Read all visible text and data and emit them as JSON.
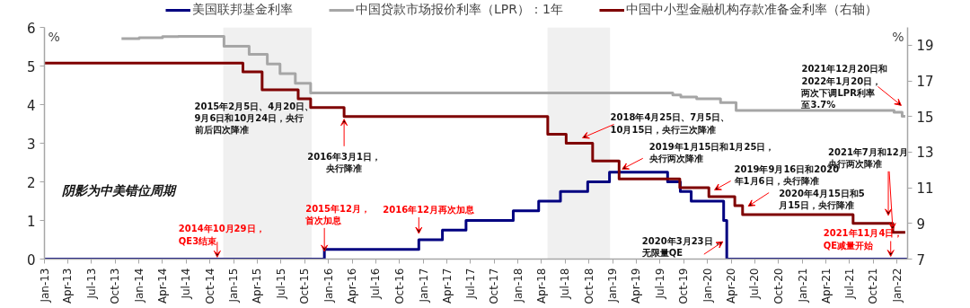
{
  "chart_data": {
    "type": "step",
    "ylabel": "%",
    "y2label": "%",
    "xlim": [
      "2013-01-01",
      "2022-02-10"
    ],
    "xticks": [
      {
        "value": "2013-01",
        "label": "Jan-13"
      },
      {
        "value": "2013-04",
        "label": "Apr-13"
      },
      {
        "value": "2013-07",
        "label": "Jul-13"
      },
      {
        "value": "2013-10",
        "label": "Oct-13"
      },
      {
        "value": "2014-01",
        "label": "Jan-14"
      },
      {
        "value": "2014-04",
        "label": "Apr-14"
      },
      {
        "value": "2014-07",
        "label": "Jul-14"
      },
      {
        "value": "2014-10",
        "label": "Oct-14"
      },
      {
        "value": "2015-01",
        "label": "Jan-15"
      },
      {
        "value": "2015-04",
        "label": "Apr-15"
      },
      {
        "value": "2015-07",
        "label": "Jul-15"
      },
      {
        "value": "2015-10",
        "label": "Oct-15"
      },
      {
        "value": "2016-01",
        "label": "Jan-16"
      },
      {
        "value": "2016-04",
        "label": "Apr-16"
      },
      {
        "value": "2016-07",
        "label": "Jul-16"
      },
      {
        "value": "2016-10",
        "label": "Oct-16"
      },
      {
        "value": "2017-01",
        "label": "Jan-17"
      },
      {
        "value": "2017-04",
        "label": "Apr-17"
      },
      {
        "value": "2017-07",
        "label": "Jul-17"
      },
      {
        "value": "2017-10",
        "label": "Oct-17"
      },
      {
        "value": "2018-01",
        "label": "Jan-18"
      },
      {
        "value": "2018-04",
        "label": "Apr-18"
      },
      {
        "value": "2018-07",
        "label": "Jul-18"
      },
      {
        "value": "2018-10",
        "label": "Oct-18"
      },
      {
        "value": "2019-01",
        "label": "Jan-19"
      },
      {
        "value": "2019-04",
        "label": "Apr-19"
      },
      {
        "value": "2019-07",
        "label": "Jul-19"
      },
      {
        "value": "2019-10",
        "label": "Oct-19"
      },
      {
        "value": "2020-01",
        "label": "Jan-20"
      },
      {
        "value": "2020-04",
        "label": "Apr-20"
      },
      {
        "value": "2020-07",
        "label": "Jul-20"
      },
      {
        "value": "2020-10",
        "label": "Oct-20"
      },
      {
        "value": "2021-01",
        "label": "Jan-21"
      },
      {
        "value": "2021-04",
        "label": "Apr-21"
      },
      {
        "value": "2021-07",
        "label": "Jul-21"
      },
      {
        "value": "2021-10",
        "label": "Oct-21"
      },
      {
        "value": "2022-01",
        "label": "Jan-22"
      }
    ],
    "ylim": [
      0,
      6
    ],
    "yticks": [
      0,
      1,
      2,
      3,
      4,
      5,
      6
    ],
    "y2lim": [
      7,
      20
    ],
    "y2ticks": [
      7,
      9,
      11,
      13,
      15,
      17,
      19
    ],
    "grid": false,
    "legend": "top",
    "series": [
      {
        "name": "美国联邦基金利率",
        "color": "#000080",
        "x": [
          "2013-01-01",
          "2015-12-16",
          "2016-12-14",
          "2017-03-15",
          "2017-06-14",
          "2017-12-13",
          "2018-03-21",
          "2018-06-13",
          "2018-09-26",
          "2018-12-19",
          "2019-07-31",
          "2019-09-18",
          "2019-10-30",
          "2020-03-03",
          "2020-03-15",
          "2022-02-10"
        ],
        "values": [
          0,
          0.25,
          0.5,
          0.75,
          1.0,
          1.25,
          1.5,
          1.75,
          2.0,
          2.25,
          2.0,
          1.75,
          1.5,
          1.0,
          0,
          0
        ]
      },
      {
        "name": "中国贷款市场报价利率（LPR）：1年",
        "color": "#a6a6a6",
        "x": [
          "2013-10-25",
          "2014-01-01",
          "2014-04-01",
          "2014-06-01",
          "2014-11-24",
          "2015-03-01",
          "2015-05-10",
          "2015-06-28",
          "2015-08-26",
          "2015-10-24",
          "2019-08-20",
          "2019-09-20",
          "2019-11-20",
          "2020-02-20",
          "2020-04-20",
          "2021-12-20",
          "2022-01-20",
          "2022-02-01"
        ],
        "values": [
          5.71,
          5.73,
          5.76,
          5.77,
          5.51,
          5.3,
          5.05,
          4.8,
          4.55,
          4.3,
          4.25,
          4.2,
          4.15,
          4.05,
          3.85,
          3.8,
          3.7,
          3.7
        ]
      },
      {
        "name": "中国中小型金融机构存款准备金利率（右轴）",
        "color": "#7f0000",
        "axis": "y2",
        "x": [
          "2013-01-01",
          "2015-02-05",
          "2015-04-20",
          "2015-09-06",
          "2015-10-24",
          "2016-03-01",
          "2018-04-25",
          "2018-07-05",
          "2018-10-15",
          "2019-01-25",
          "2019-09-16",
          "2020-01-06",
          "2020-04-15",
          "2020-05-15",
          "2021-07-15",
          "2021-12-15",
          "2022-02-01"
        ],
        "values": [
          18,
          17.5,
          16.5,
          16.0,
          15.5,
          15.0,
          14.0,
          13.5,
          12.5,
          11.5,
          11.0,
          10.5,
          10.0,
          9.5,
          9.0,
          8.5,
          8.5
        ]
      }
    ],
    "bands": [
      {
        "axis": "x",
        "from": "2014-11-21",
        "to": "2015-10-28",
        "color": "#f0f0f0"
      },
      {
        "axis": "x",
        "from": "2018-04-24",
        "to": "2018-12-21",
        "color": "#f0f0f0"
      }
    ],
    "annotations": [
      "阴影为中美错位周期",
      "2015年2月5日、4月20日、9月6日和10月24日，央行前后四次降准",
      {
        "text": "2014年10月29日，QE3结束",
        "x": "2014-10-29",
        "y": 0.05
      },
      {
        "text": "2015年12月，首次加息",
        "x": "2015-12-16",
        "y": 0.2
      },
      {
        "text": "2016年3月1日，央行降准",
        "x": "2016-03-01",
        "y": 3.69
      },
      {
        "text": "2016年12月再次加息",
        "x": "2016-12-14",
        "y": 0.5
      },
      {
        "text": "2018年4月25日、7月5日、10月15日，央行三次降准",
        "x": "2018-09-06",
        "y": 3.14
      },
      {
        "text": "2019年1月15日和1月25日，央行两次降准",
        "x": "2019-02-06",
        "y": 2.33
      },
      {
        "text": "2019年9月16日和2020年1月6日，央行降准",
        "x": "2020-01-28",
        "y": 1.79
      },
      {
        "text": "2020年4月15日和5月15日，央行降准",
        "x": "2020-06-06",
        "y": 1.37
      },
      {
        "text": "2020年3月23日，无限量QE",
        "x": "2020-02-29",
        "y": 0.45
      },
      {
        "text": "2021年12月20日和2022年1月20日，两次下调LPR利率至3.7%",
        "x": "2022-01-20",
        "y": 3.7
      },
      {
        "text": "2021年7月和12月央行两次降准",
        "x": "2021-12-15",
        "y": 0.69
      },
      {
        "text": "2021年11月4日，QE减量开始",
        "x": "2021-12-07",
        "y": 0.07
      }
    ]
  }
}
